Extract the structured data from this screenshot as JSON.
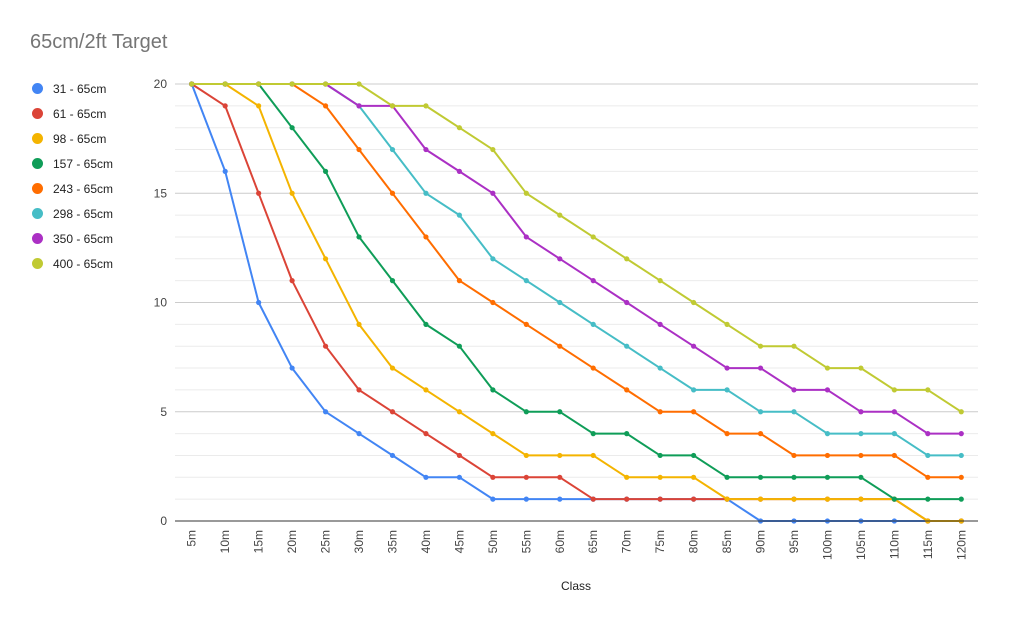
{
  "chart_data": {
    "type": "line",
    "title": "65cm/2ft Target",
    "xlabel": "Class",
    "ylabel": "",
    "ylim": [
      0,
      20
    ],
    "y_ticks": [
      0,
      5,
      10,
      15,
      20
    ],
    "y_minor_step": 1,
    "grid": true,
    "legend_position": "left",
    "categories": [
      "5m",
      "10m",
      "15m",
      "20m",
      "25m",
      "30m",
      "35m",
      "40m",
      "45m",
      "50m",
      "55m",
      "60m",
      "65m",
      "70m",
      "75m",
      "80m",
      "85m",
      "90m",
      "95m",
      "100m",
      "105m",
      "110m",
      "115m",
      "120m"
    ],
    "series": [
      {
        "name": "31 - 65cm",
        "color": "#4285f4",
        "values": [
          20,
          16,
          10,
          7,
          5,
          4,
          3,
          2,
          2,
          1,
          1,
          1,
          1,
          1,
          1,
          1,
          1,
          0,
          0,
          0,
          0,
          0,
          0,
          0
        ]
      },
      {
        "name": "61 - 65cm",
        "color": "#db4437",
        "values": [
          20,
          19,
          15,
          11,
          8,
          6,
          5,
          4,
          3,
          2,
          2,
          2,
          1,
          1,
          1,
          1,
          1,
          1,
          1,
          1,
          1,
          1,
          0,
          0
        ]
      },
      {
        "name": "98 - 65cm",
        "color": "#f4b400",
        "values": [
          20,
          20,
          19,
          15,
          12,
          9,
          7,
          6,
          5,
          4,
          3,
          3,
          3,
          2,
          2,
          2,
          1,
          1,
          1,
          1,
          1,
          1,
          0,
          0
        ]
      },
      {
        "name": "157 - 65cm",
        "color": "#0f9d58",
        "values": [
          20,
          20,
          20,
          18,
          16,
          13,
          11,
          9,
          8,
          6,
          5,
          5,
          4,
          4,
          3,
          3,
          2,
          2,
          2,
          2,
          2,
          1,
          1,
          1
        ]
      },
      {
        "name": "243 - 65cm",
        "color": "#ff6d00",
        "values": [
          20,
          20,
          20,
          20,
          19,
          17,
          15,
          13,
          11,
          10,
          9,
          8,
          7,
          6,
          5,
          5,
          4,
          4,
          3,
          3,
          3,
          3,
          2,
          2
        ]
      },
      {
        "name": "298 - 65cm",
        "color": "#46bdc6",
        "values": [
          20,
          20,
          20,
          20,
          20,
          19,
          17,
          15,
          14,
          12,
          11,
          10,
          9,
          8,
          7,
          6,
          6,
          5,
          5,
          4,
          4,
          4,
          3,
          3
        ]
      },
      {
        "name": "350 - 65cm",
        "color": "#ab30c4",
        "values": [
          20,
          20,
          20,
          20,
          20,
          19,
          19,
          17,
          16,
          15,
          13,
          12,
          11,
          10,
          9,
          8,
          7,
          7,
          6,
          6,
          5,
          5,
          4,
          4
        ]
      },
      {
        "name": "400 - 65cm",
        "color": "#c0ca33",
        "values": [
          20,
          20,
          20,
          20,
          20,
          20,
          19,
          19,
          18,
          17,
          15,
          14,
          13,
          12,
          11,
          10,
          9,
          8,
          8,
          7,
          7,
          6,
          6,
          5
        ]
      }
    ]
  }
}
